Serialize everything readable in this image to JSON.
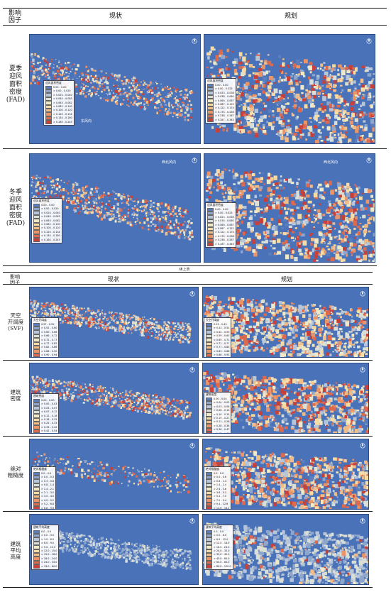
{
  "table1": {
    "header": {
      "factor": "影响\n因子",
      "current": "现状",
      "plan": "规划"
    },
    "rows": [
      {
        "label": "夏季\n迎风\n面积\n密度\n(FAD)",
        "wind": "东风向",
        "legend_current": {
          "title": "迎风面积密度",
          "items": [
            "0.00 - 0.00",
            "> 0.00 - 0.020",
            "> 0.020 - 0.040",
            "> 0.040 - 0.063",
            "> 0.063 - 0.082",
            "> 0.082 - 0.100",
            "> 0.100 - 0.120",
            "> 0.120 - 0.134",
            "> 0.134 - 0.180",
            "> 0.180 - 0.245"
          ]
        },
        "legend_plan": {
          "title": "迎风面积密度",
          "items": [
            "0.00 - 0.00",
            "> 0.00 - 0.023",
            "> 0.023 - 0.038",
            "> 0.038 - 0.060",
            "> 0.060 - 0.087",
            "> 0.087 - 0.122",
            "> 0.122 - 0.174",
            "> 0.174 - 0.238",
            "> 0.238 - 0.287",
            "> 0.287 - 0.345"
          ]
        }
      },
      {
        "label": "冬季\n迎风\n面积\n密度\n(FAD)",
        "wind": "西北风向",
        "legend_current": {
          "title": "迎风面积密度",
          "items": [
            "0.00 - 0.00",
            "> 0.00 - 0.020",
            "> 0.020 - 0.040",
            "> 0.040 - 0.063",
            "> 0.063 - 0.082",
            "> 0.082 - 0.100",
            "> 0.100 - 0.120",
            "> 0.120 - 0.134",
            "> 0.134 - 0.180",
            "> 0.180 - 0.245"
          ]
        },
        "legend_plan": {
          "title": "迎风面积密度",
          "items": [
            "0.00 - 0.00",
            "> 0.00 - 0.023",
            "> 0.023 - 0.038",
            "> 0.038 - 0.060",
            "> 0.060 - 0.087",
            "> 0.087 - 0.122",
            "> 0.122 - 0.174",
            "> 0.174 - 0.238",
            "> 0.238 - 0.287",
            "> 0.287 - 0.345"
          ]
        }
      }
    ]
  },
  "caption": "续上表",
  "table2": {
    "header": {
      "factor": "影响\n因子",
      "current": "现状",
      "plan": "规划"
    },
    "rows": [
      {
        "label": "天空\n开阔度\n(SVF)",
        "legend_current": {
          "title": "天空开阔度",
          "items": [
            "0.27 - 0.52",
            "> 0.52 - 0.60",
            "> 0.60 - 0.66",
            "> 0.66 - 0.72",
            "> 0.72 - 0.77",
            "> 0.77 - 0.82",
            "> 0.82 - 0.86",
            "> 0.86 - 0.90",
            "> 0.90 - 0.94",
            "> 0.94 - 0.99"
          ]
        },
        "legend_plan": {
          "title": "天空开阔度",
          "items": [
            "0.23 - 0.43",
            "> 0.43 - 0.52",
            "> 0.52 - 0.59",
            "> 0.59 - 0.65",
            "> 0.65 - 0.71",
            "> 0.71 - 0.77",
            "> 0.77 - 0.83",
            "> 0.83 - 0.88",
            "> 0.88 - 0.93",
            "> 0.93 - 0.99"
          ]
        }
      },
      {
        "label": "建筑\n密度",
        "legend_current": {
          "title": "建筑密度",
          "items": [
            "0.00 - 0.00",
            "> 0.00 - 0.03",
            "> 0.03 - 0.07",
            "> 0.07 - 0.12",
            "> 0.12 - 0.18",
            "> 0.18 - 0.25",
            "> 0.25 - 0.33",
            "> 0.33 - 0.42",
            "> 0.42 - 0.54",
            "> 0.54 - 1.00"
          ]
        },
        "legend_plan": {
          "title": "建筑密度",
          "items": [
            "0.00 - 0.00",
            "> 0.00 - 0.03",
            "> 0.03 - 0.06",
            "> 0.06 - 0.10",
            "> 0.10 - 0.15",
            "> 0.15 - 0.21",
            "> 0.21 - 0.28",
            "> 0.28 - 0.36",
            "> 0.36 - 0.47",
            "> 0.47 - 1.00"
          ]
        }
      },
      {
        "label": "绝对\n粗糙度",
        "legend_current": {
          "title": "绝对粗糙度",
          "items": [
            "0.0 - 0.0",
            "> 0.0 - 0.3",
            "> 0.3 - 0.8",
            "> 0.8 - 1.4",
            "> 1.4 - 2.1",
            "> 2.1 - 3.0",
            "> 3.0 - 4.0",
            "> 4.0 - 5.2",
            "> 5.2 - 6.8",
            "> 6.8 - 9.6"
          ]
        },
        "legend_plan": {
          "title": "绝对粗糙度",
          "items": [
            "0.0 - 0.0",
            "> 0.0 - 0.6",
            "> 0.6 - 1.4",
            "> 1.4 - 2.4",
            "> 2.4 - 3.6",
            "> 3.6 - 5.1",
            "> 5.1 - 7.0",
            "> 7.0 - 9.4",
            "> 9.4 - 12.6",
            "> 12.6 - 18.2"
          ]
        }
      },
      {
        "label": "建筑\n平均\n高度",
        "legend_current": {
          "title": "建筑平均高度",
          "items": [
            "0.0 - 0.0",
            "> 0.0 - 3.0",
            "> 3.0 - 6.0",
            "> 6.0 - 9.0",
            "> 9.0 - 12.0",
            "> 12.0 - 15.0",
            "> 15.0 - 18.0",
            "> 18.0 - 24.0",
            "> 24.0 - 33.0",
            "> 33.0 - 60.0"
          ]
        },
        "legend_plan": {
          "title": "建筑平均高度",
          "items": [
            "0.0 - 0.0",
            "> 0.0 - 6.0",
            "> 6.0 - 12.0",
            "> 12.0 - 18.0",
            "> 18.0 - 24.0",
            "> 24.0 - 33.0",
            "> 33.0 - 45.0",
            "> 45.0 - 60.0",
            "> 60.0 - 80.0",
            "> 80.0 - 120.0"
          ]
        }
      }
    ]
  },
  "palette": {
    "water": "#4a72b8",
    "ramp": [
      "#5b7fbe",
      "#8ea6cc",
      "#b7c5d8",
      "#d9dfd7",
      "#efe9c6",
      "#f6dba4",
      "#f2bc86",
      "#ea9468",
      "#dd6a4f",
      "#c9403a"
    ]
  }
}
